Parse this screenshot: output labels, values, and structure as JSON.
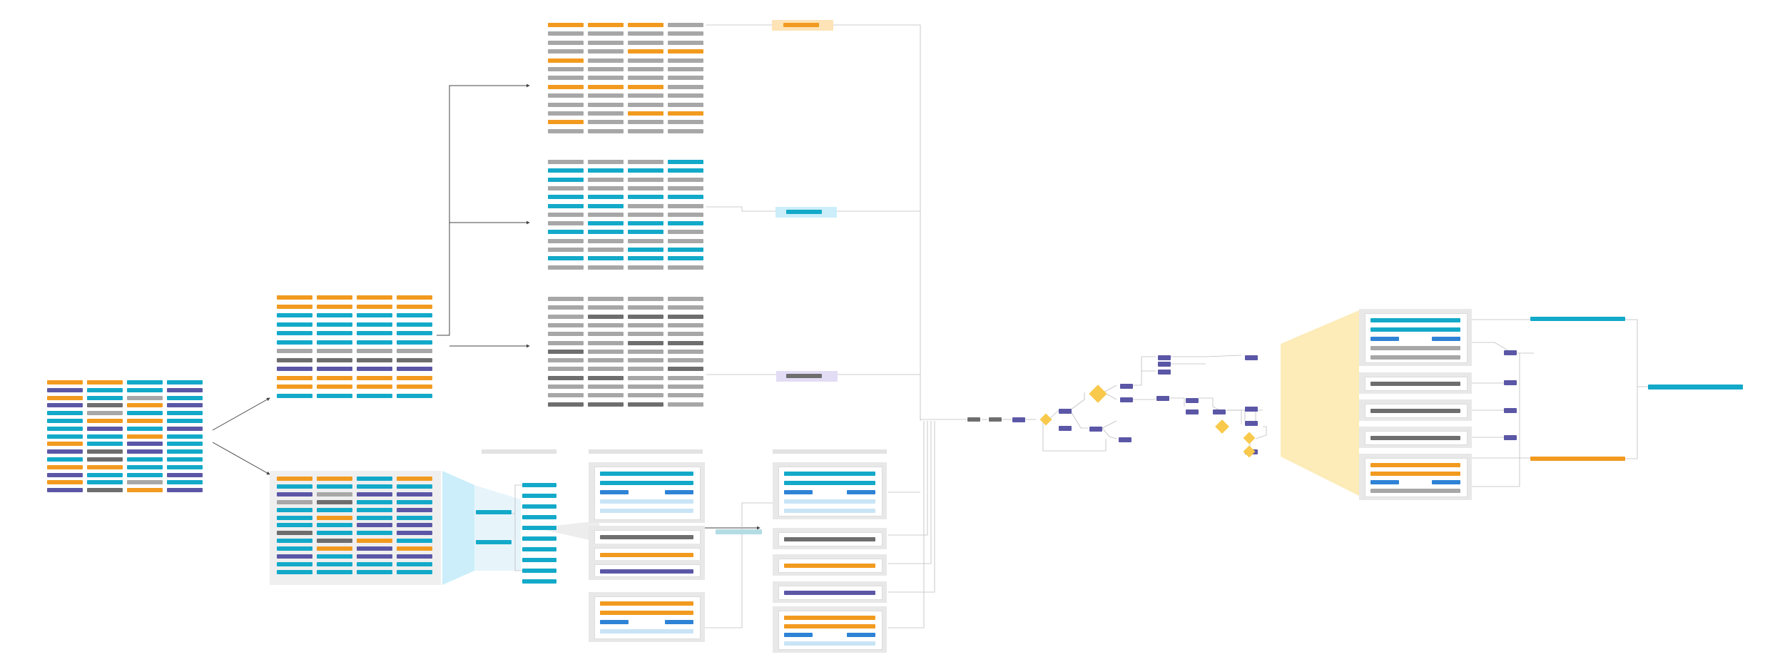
{
  "diagram": {
    "colors": {
      "orange": "#f29a1f",
      "teal": "#13a9c9",
      "purple": "#5b57a6",
      "gray": "#a7a7a7",
      "darkgray": "#6e6e6e",
      "blue": "#2e83d6",
      "lightblue": "#c9e4f6",
      "yellow": "#f8c94b",
      "paleyellow": "#fdebb8",
      "line": "#bdbdbd",
      "arrow": "#444444",
      "panel": "#ececec"
    },
    "source_grid_pattern": [
      "orange",
      "orange",
      "teal",
      "teal",
      "purple",
      "teal",
      "teal",
      "purple",
      "orange",
      "teal",
      "gray",
      "teal",
      "purple",
      "darkgray",
      "orange",
      "purple",
      "teal",
      "gray",
      "teal",
      "teal",
      "teal",
      "orange",
      "orange",
      "teal",
      "teal",
      "purple",
      "teal",
      "purple",
      "teal",
      "teal",
      "orange",
      "teal",
      "orange",
      "teal",
      "purple",
      "teal",
      "purple",
      "darkgray",
      "purple",
      "teal",
      "teal",
      "darkgray",
      "teal",
      "teal"
    ],
    "upper_grid_pattern": [
      "orange",
      "orange",
      "orange",
      "orange",
      "orange",
      "orange",
      "orange",
      "orange",
      "teal",
      "teal",
      "teal",
      "teal",
      "teal",
      "teal",
      "teal",
      "teal",
      "teal",
      "teal",
      "teal",
      "teal",
      "teal",
      "teal",
      "teal",
      "teal",
      "gray",
      "gray",
      "gray",
      "gray",
      "darkgray",
      "darkgray",
      "darkgray",
      "darkgray",
      "purple",
      "purple",
      "purple",
      "purple"
    ],
    "lower_grid_pattern": [
      "orange",
      "orange",
      "teal",
      "orange",
      "teal",
      "teal",
      "teal",
      "teal",
      "purple",
      "gray",
      "purple",
      "purple",
      "gray",
      "darkgray",
      "teal",
      "teal",
      "teal",
      "teal",
      "teal",
      "purple",
      "teal",
      "orange",
      "teal",
      "teal",
      "teal",
      "teal",
      "purple",
      "purple",
      "darkgray",
      "teal",
      "teal",
      "purple",
      "teal",
      "darkgray",
      "orange",
      "teal",
      "teal",
      "orange",
      "purple",
      "orange",
      "purple",
      "teal",
      "purple",
      "purple",
      "teal",
      "teal",
      "teal",
      "teal",
      "teal",
      "teal",
      "teal",
      "teal"
    ],
    "grid_a_pattern": [
      "orange",
      "orange",
      "orange",
      "gray",
      "gray",
      "gray",
      "gray",
      "gray",
      "gray",
      "gray",
      "gray",
      "gray",
      "gray",
      "gray"
    ],
    "grid_b_pattern": [
      "gray",
      "gray",
      "gray",
      "teal",
      "teal",
      "teal",
      "teal",
      "teal",
      "teal",
      "gray",
      "gray",
      "gray",
      "gray"
    ],
    "grid_c_pattern": [
      "gray",
      "gray",
      "gray",
      "gray",
      "gray",
      "gray",
      "gray",
      "gray",
      "gray",
      "darkgray",
      "darkgray",
      "darkgray",
      "gray"
    ],
    "form_cards": [
      {
        "rows": [
          "teal",
          "teal",
          "split-blue",
          "lightblue",
          "lightblue"
        ]
      },
      {
        "rows": [
          "darkgray"
        ]
      },
      {
        "rows": [
          "orange"
        ]
      },
      {
        "rows": [
          "purple"
        ]
      },
      {
        "rows": [
          "orange",
          "orange",
          "split-blue",
          "lightblue"
        ]
      }
    ],
    "right_cards": [
      {
        "rows": [
          "teal",
          "teal",
          "split-blue",
          "gray",
          "gray"
        ]
      },
      {
        "rows": [
          "darkgray"
        ]
      },
      {
        "rows": [
          "darkgray"
        ]
      },
      {
        "rows": [
          "darkgray"
        ]
      },
      {
        "rows": [
          "orange",
          "orange",
          "split-blue",
          "gray"
        ]
      }
    ],
    "flow": {
      "dark_nodes": 2,
      "purple_nodes": 18,
      "decisions": 4
    },
    "outputs": [
      "teal",
      "teal",
      "orange"
    ]
  }
}
